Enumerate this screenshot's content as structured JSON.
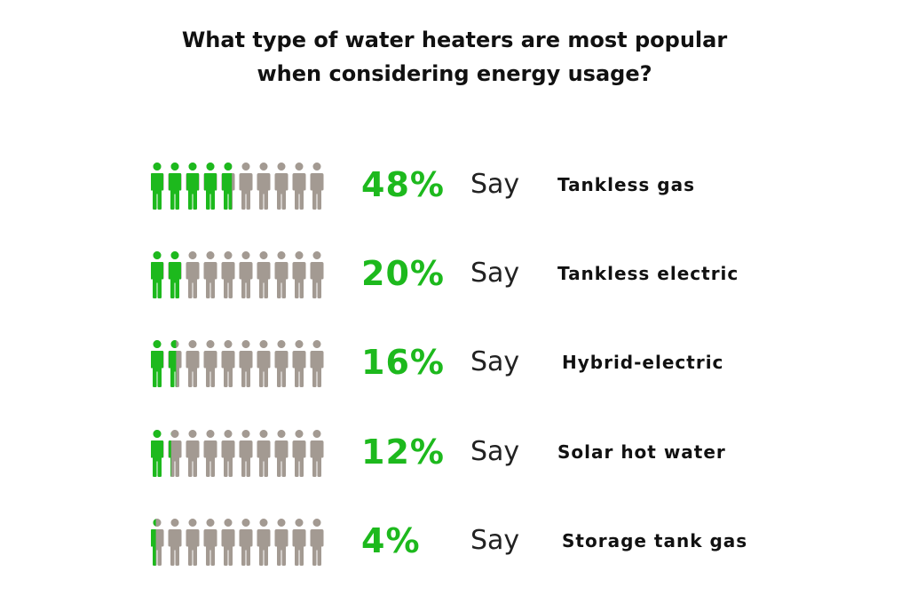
{
  "chart_data": {
    "type": "pictograph",
    "title_lines": [
      "What type of water heaters are most popular",
      "when considering energy usage?"
    ],
    "icons_per_row": 10,
    "say_text": "Say",
    "colors": {
      "filled": "#1db91d",
      "empty": "#a39a92",
      "text": "#111111"
    },
    "categories": [
      "Tankless gas",
      "Tankless electric",
      "Hybrid-electric",
      "Solar hot water",
      "Storage tank gas"
    ],
    "values": [
      48,
      20,
      16,
      12,
      4
    ],
    "value_labels": [
      "48%",
      "20%",
      "16%",
      "12%",
      "4%"
    ]
  }
}
